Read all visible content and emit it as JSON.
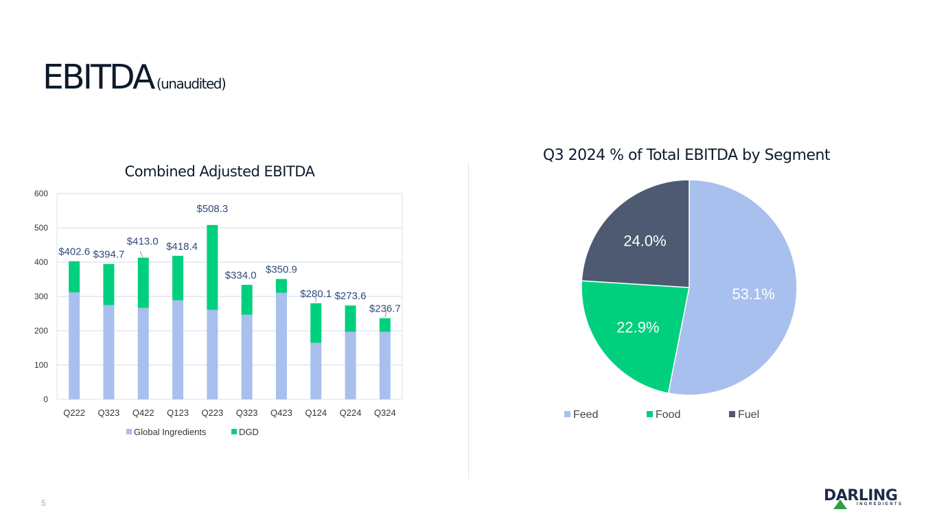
{
  "page": {
    "title": "EBITDA",
    "title_suffix": "(unaudited)",
    "page_number": "5",
    "logo_text": "DARLING",
    "logo_subtext": "INGREDIENTS"
  },
  "colors": {
    "global": "#a8c0ee",
    "dgd": "#00d07e",
    "fuel": "#4e5a72",
    "grid": "#d9e1f2",
    "label": "#2f4a7d"
  },
  "chart_data": [
    {
      "type": "bar",
      "stacked": true,
      "title": "Combined Adjusted EBITDA",
      "categories": [
        "Q222",
        "Q323",
        "Q422",
        "Q123",
        "Q223",
        "Q323",
        "Q423",
        "Q124",
        "Q224",
        "Q324"
      ],
      "series": [
        {
          "name": "Global Ingredients",
          "values": [
            312,
            275,
            267,
            289,
            261,
            247,
            311,
            165,
            197,
            197
          ]
        },
        {
          "name": "DGD",
          "values": [
            90.6,
            119.7,
            146.0,
            129.4,
            247.3,
            87.0,
            39.9,
            115.1,
            76.6,
            39.7
          ]
        }
      ],
      "total_labels": [
        "$402.6",
        "$394.7",
        "$413.0",
        "$418.4",
        "$508.3",
        "$334.0",
        "$350.9",
        "$280.1",
        "$273.6",
        "$236.7"
      ],
      "ylim": [
        0,
        600
      ],
      "yticks": [
        0,
        100,
        200,
        300,
        400,
        500,
        600
      ],
      "legend": "bottom"
    },
    {
      "type": "pie",
      "title": "Q3 2024 % of Total EBITDA by Segment",
      "labels": [
        "Feed",
        "Food",
        "Fuel"
      ],
      "values": [
        53.1,
        22.9,
        24.0
      ],
      "value_labels": [
        "53.1%",
        "22.9%",
        "24.0%"
      ],
      "legend": "bottom"
    }
  ]
}
